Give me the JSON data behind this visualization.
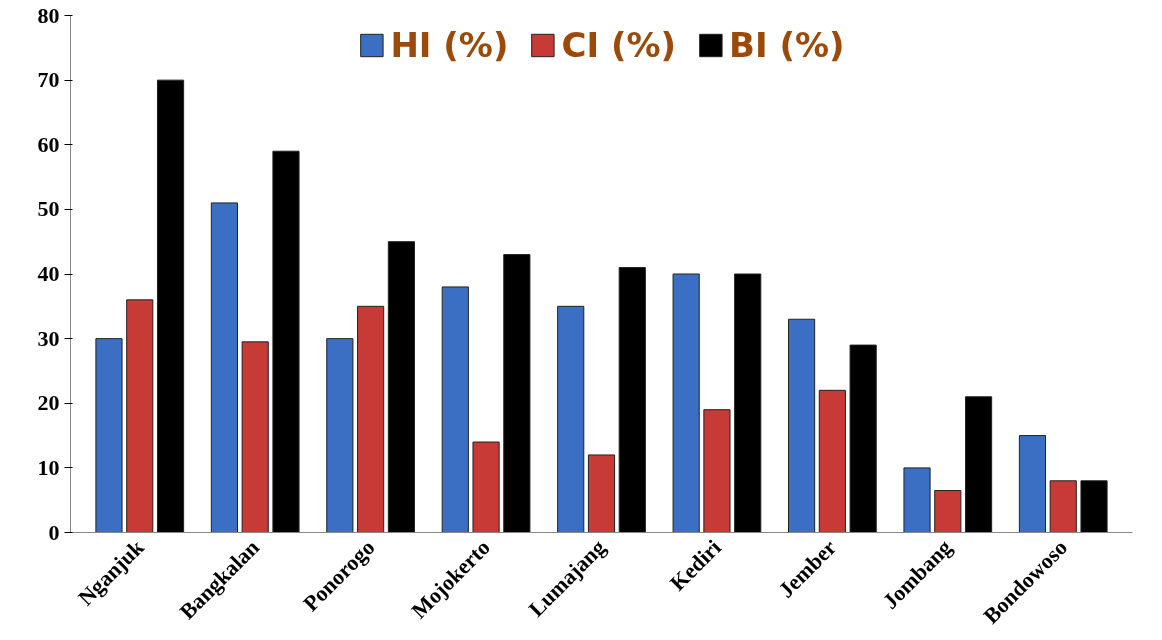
{
  "chart_data": {
    "type": "bar",
    "categories": [
      "Nganjuk",
      "Bangkalan",
      "Ponorogo",
      "Mojokerto",
      "Lumajang",
      "Kediri",
      "Jember",
      "Jombang",
      "Bondowoso"
    ],
    "series": [
      {
        "name": "HI (%)",
        "color": "#3a6fc4",
        "values": [
          30,
          51,
          30,
          38,
          35,
          40,
          33,
          10,
          15
        ]
      },
      {
        "name": "CI (%)",
        "color": "#c83a36",
        "values": [
          36,
          29.5,
          35,
          14,
          12,
          19,
          22,
          6.5,
          8
        ]
      },
      {
        "name": "BI (%)",
        "color": "#000000",
        "values": [
          70,
          59,
          45,
          43,
          41,
          40,
          29,
          21,
          8
        ]
      }
    ],
    "ylim": [
      0,
      80
    ],
    "yticks": [
      0,
      10,
      20,
      30,
      40,
      50,
      60,
      70,
      80
    ],
    "grid": false,
    "legend": "top"
  }
}
